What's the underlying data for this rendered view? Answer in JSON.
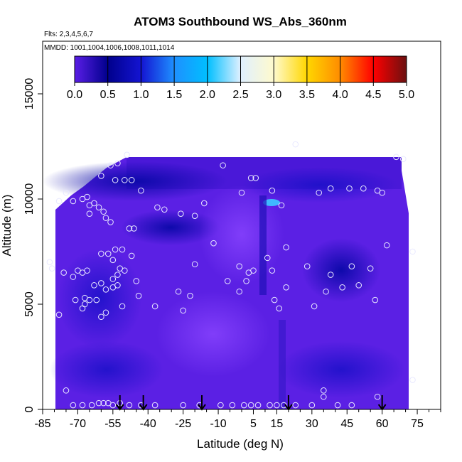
{
  "chart_data": {
    "type": "heatmap",
    "title": "ATOM3 Southbound WS_Abs_360nm",
    "flights_label": "Flts: 2,3,4,5,6,7",
    "dates_label": "MMDD: 1001,1004,1006,1008,1011,1014",
    "xlabel": "Latitude (deg N)",
    "ylabel": "Altitude (m)",
    "xlim": [
      -85,
      85
    ],
    "ylim": [
      0,
      17500
    ],
    "xticks": [
      -85,
      -70,
      -55,
      -40,
      -25,
      -10,
      5,
      15,
      30,
      45,
      60,
      75
    ],
    "yticks": [
      0,
      5000,
      10000,
      15000
    ],
    "colorbar": {
      "range": [
        0.0,
        5.0
      ],
      "tick_labels": [
        "0.0",
        "0.5",
        "1.0",
        "1.5",
        "2.0",
        "2.5",
        "3.0",
        "3.5",
        "4.0",
        "4.5",
        "5.0"
      ],
      "colors": [
        "#5a1ee6",
        "#00008c",
        "#1414d2",
        "#1e90ff",
        "#00bfff",
        "#e0f0ff",
        "#fffacd",
        "#ffd700",
        "#ff8c00",
        "#ff0000",
        "#6b1010"
      ]
    },
    "arrow_latitudes": [
      -52,
      -42,
      -17,
      20,
      60
    ],
    "samples": [
      {
        "lat": -78,
        "alt": 9900
      },
      {
        "lat": -75,
        "alt": 10300
      },
      {
        "lat": -72,
        "alt": 9900
      },
      {
        "lat": -68,
        "alt": 10000
      },
      {
        "lat": -66,
        "alt": 10100
      },
      {
        "lat": -65,
        "alt": 9700
      },
      {
        "lat": -63,
        "alt": 9800
      },
      {
        "lat": -61,
        "alt": 9600
      },
      {
        "lat": -59,
        "alt": 9400
      },
      {
        "lat": -58,
        "alt": 9100
      },
      {
        "lat": -56,
        "alt": 8900
      },
      {
        "lat": -65,
        "alt": 9300
      },
      {
        "lat": -60,
        "alt": 11100
      },
      {
        "lat": -56,
        "alt": 11600
      },
      {
        "lat": -53,
        "alt": 11700
      },
      {
        "lat": -54,
        "alt": 10900
      },
      {
        "lat": -50,
        "alt": 10900
      },
      {
        "lat": -47,
        "alt": 10900
      },
      {
        "lat": -49,
        "alt": 12100
      },
      {
        "lat": -43,
        "alt": 10400
      },
      {
        "lat": -36,
        "alt": 9600
      },
      {
        "lat": -33,
        "alt": 9500
      },
      {
        "lat": -26,
        "alt": 9300
      },
      {
        "lat": -20,
        "alt": 9200
      },
      {
        "lat": -16,
        "alt": 9800
      },
      {
        "lat": -8,
        "alt": 11600
      },
      {
        "lat": 0,
        "alt": 10300
      },
      {
        "lat": 4,
        "alt": 11000
      },
      {
        "lat": 6,
        "alt": 11000
      },
      {
        "lat": 13,
        "alt": 10400
      },
      {
        "lat": 17,
        "alt": 9700
      },
      {
        "lat": 23,
        "alt": 12600
      },
      {
        "lat": 33,
        "alt": 10300
      },
      {
        "lat": 38,
        "alt": 10500
      },
      {
        "lat": 46,
        "alt": 10500
      },
      {
        "lat": 52,
        "alt": 10500
      },
      {
        "lat": 58,
        "alt": 10400
      },
      {
        "lat": 60,
        "alt": 10300
      },
      {
        "lat": 66,
        "alt": 12000
      },
      {
        "lat": 69,
        "alt": 11900
      },
      {
        "lat": 73,
        "alt": 7500
      },
      {
        "lat": -48,
        "alt": 8600
      },
      {
        "lat": -46,
        "alt": 8600
      },
      {
        "lat": -47,
        "alt": 7300
      },
      {
        "lat": -45,
        "alt": 6100
      },
      {
        "lat": -51,
        "alt": 7600
      },
      {
        "lat": -54,
        "alt": 7600
      },
      {
        "lat": -57,
        "alt": 7400
      },
      {
        "lat": -60,
        "alt": 7400
      },
      {
        "lat": -55,
        "alt": 7100
      },
      {
        "lat": -52,
        "alt": 6700
      },
      {
        "lat": -50,
        "alt": 6600
      },
      {
        "lat": -53,
        "alt": 6400
      },
      {
        "lat": -55,
        "alt": 6200
      },
      {
        "lat": -66,
        "alt": 6600
      },
      {
        "lat": -68,
        "alt": 6500
      },
      {
        "lat": -70,
        "alt": 6600
      },
      {
        "lat": -72,
        "alt": 6300
      },
      {
        "lat": -76,
        "alt": 6500
      },
      {
        "lat": -82,
        "alt": 7000
      },
      {
        "lat": -81,
        "alt": 6700
      },
      {
        "lat": -67,
        "alt": 5300
      },
      {
        "lat": -65,
        "alt": 5200
      },
      {
        "lat": -63,
        "alt": 5900
      },
      {
        "lat": -60,
        "alt": 6000
      },
      {
        "lat": -58,
        "alt": 5700
      },
      {
        "lat": -55,
        "alt": 5800
      },
      {
        "lat": -53,
        "alt": 5900
      },
      {
        "lat": -51,
        "alt": 4900
      },
      {
        "lat": -58,
        "alt": 4600
      },
      {
        "lat": -60,
        "alt": 4400
      },
      {
        "lat": -62,
        "alt": 5200
      },
      {
        "lat": -67,
        "alt": 5000
      },
      {
        "lat": -68,
        "alt": 4800
      },
      {
        "lat": -71,
        "alt": 5200
      },
      {
        "lat": -78,
        "alt": 4500
      },
      {
        "lat": -44,
        "alt": 5400
      },
      {
        "lat": -37,
        "alt": 4900
      },
      {
        "lat": -27,
        "alt": 5600
      },
      {
        "lat": -25,
        "alt": 4700
      },
      {
        "lat": -22,
        "alt": 5400
      },
      {
        "lat": -20,
        "alt": 6900
      },
      {
        "lat": -12,
        "alt": 7900
      },
      {
        "lat": -6,
        "alt": 6100
      },
      {
        "lat": -1,
        "alt": 6800
      },
      {
        "lat": 3,
        "alt": 6500
      },
      {
        "lat": 5,
        "alt": 6600
      },
      {
        "lat": 2,
        "alt": 6100
      },
      {
        "lat": -1,
        "alt": 5600
      },
      {
        "lat": 13,
        "alt": 6600
      },
      {
        "lat": 11,
        "alt": 7200
      },
      {
        "lat": 19,
        "alt": 7700
      },
      {
        "lat": 14,
        "alt": 5200
      },
      {
        "lat": 16,
        "alt": 4800
      },
      {
        "lat": 19,
        "alt": 5800
      },
      {
        "lat": 28,
        "alt": 6800
      },
      {
        "lat": 31,
        "alt": 4900
      },
      {
        "lat": 36,
        "alt": 5600
      },
      {
        "lat": 38,
        "alt": 6400
      },
      {
        "lat": 43,
        "alt": 5800
      },
      {
        "lat": 47,
        "alt": 6800
      },
      {
        "lat": 50,
        "alt": 5900
      },
      {
        "lat": 55,
        "alt": 6700
      },
      {
        "lat": 57,
        "alt": 5200
      },
      {
        "lat": 62,
        "alt": 7800
      },
      {
        "lat": -75,
        "alt": 900
      },
      {
        "lat": -72,
        "alt": 200
      },
      {
        "lat": -68,
        "alt": 200
      },
      {
        "lat": -64,
        "alt": 200
      },
      {
        "lat": -61,
        "alt": 300
      },
      {
        "lat": -59,
        "alt": 300
      },
      {
        "lat": -57,
        "alt": 300
      },
      {
        "lat": -55,
        "alt": 200
      },
      {
        "lat": -52,
        "alt": 300
      },
      {
        "lat": -48,
        "alt": 200
      },
      {
        "lat": -43,
        "alt": 200
      },
      {
        "lat": -37,
        "alt": 200
      },
      {
        "lat": -25,
        "alt": 200
      },
      {
        "lat": -18,
        "alt": 200
      },
      {
        "lat": -9,
        "alt": 200
      },
      {
        "lat": -4,
        "alt": 200
      },
      {
        "lat": 1,
        "alt": 200
      },
      {
        "lat": 4,
        "alt": 200
      },
      {
        "lat": 7,
        "alt": 200
      },
      {
        "lat": 12,
        "alt": 200
      },
      {
        "lat": 15,
        "alt": 200
      },
      {
        "lat": 18,
        "alt": 200
      },
      {
        "lat": 23,
        "alt": 200
      },
      {
        "lat": 30,
        "alt": 200
      },
      {
        "lat": 35,
        "alt": 900
      },
      {
        "lat": 35,
        "alt": 600
      },
      {
        "lat": 41,
        "alt": 200
      },
      {
        "lat": 47,
        "alt": 200
      },
      {
        "lat": 58,
        "alt": 600
      },
      {
        "lat": 73,
        "alt": 1400
      }
    ]
  }
}
